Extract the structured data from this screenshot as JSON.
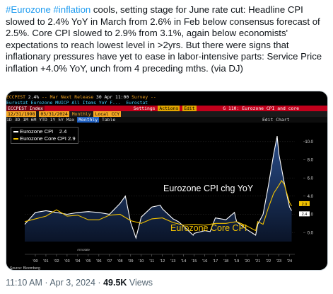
{
  "tweet": {
    "hashtag1": "#Eurozone",
    "hashtag2": "#inflation",
    "body": " cools, setting stage for June rate cut: Headline CPI slowed to 2.4% YoY in March from 2.6% in Feb below consensus forecast of 2.5%. Core CPI slowed to 2.9% from 3.1%, again below economists' expectations to reach lowest level in >2yrs. But there were signs that inflationary pressures have yet to ease in labor-intensive parts: Service Price inflation +4.0% YoY, unch from 4 preceding mths. (via DJ)"
  },
  "terminal": {
    "ticker": "ECCPEST",
    "last": "2.4%",
    "unch": "--",
    "period": "Mar",
    "next_release_label": "Next Release",
    "next_release": "30 Apr 11:00",
    "survey_label": "Survey",
    "survey": "--",
    "description": "Eurostat Eurozone MUICP All Items YoY F...",
    "source": "Eurostat",
    "security": "ECCPEST Index",
    "btn_settings": "Settings",
    "btn_actions": "Actions",
    "btn_edit": "Edit",
    "page_title": "G 110: Eurozone CPI and core",
    "date_from": "12/31/1998",
    "date_to": "03/31/2024",
    "freq": "Monthly",
    "type": "Local CCY",
    "ranges": [
      "1D",
      "3D",
      "1M",
      "6M",
      "YTD",
      "1Y",
      "5Y",
      "Max"
    ],
    "range_selected": "Monthly",
    "table_btn": "Table",
    "edit_chart": "Edit Chart",
    "source_footer": "Source: Bloomberg"
  },
  "colors": {
    "headline": "#ffffff",
    "core": "#f2c200",
    "area_top": "#2a4d8a",
    "area_bottom": "#0a1428",
    "accent": "#1d9bf0",
    "bb_red": "#c2001b",
    "bb_amber": "#f5a623"
  },
  "chart_data": {
    "type": "area",
    "series": [
      {
        "name": "Eurozone CPI",
        "last_value": "2.4",
        "x": [
          1999,
          2000,
          2001,
          2002,
          2003,
          2004,
          2005,
          2006,
          2007,
          2008,
          2008.5,
          2009,
          2009.5,
          2010,
          2011,
          2011.8,
          2012,
          2013,
          2013.5,
          2014,
          2014.9,
          2015,
          2016,
          2016.5,
          2017,
          2018,
          2018.8,
          2019,
          2020,
          2020.8,
          2021,
          2021.5,
          2022,
          2022.5,
          2022.83,
          2023,
          2023.5,
          2024,
          2024.2
        ],
        "y": [
          0.9,
          2.2,
          2.4,
          2.2,
          2.0,
          2.2,
          2.3,
          2.2,
          2.0,
          3.2,
          4.0,
          1.1,
          -0.6,
          1.7,
          2.8,
          3.0,
          2.6,
          1.5,
          1.2,
          0.7,
          -0.3,
          -0.1,
          0.2,
          0.1,
          1.6,
          1.4,
          2.2,
          1.2,
          0.3,
          -0.3,
          0.9,
          2.0,
          5.1,
          8.6,
          10.6,
          8.6,
          5.5,
          2.8,
          2.4
        ]
      },
      {
        "name": "Eurozone Core CPI",
        "last_value": "2.9",
        "x": [
          1999,
          2001,
          2002,
          2003,
          2004,
          2005,
          2006,
          2007,
          2008,
          2009,
          2010,
          2011,
          2012,
          2013,
          2014,
          2015,
          2016,
          2017,
          2018,
          2019,
          2020,
          2020.8,
          2021,
          2021.5,
          2022,
          2022.5,
          2023,
          2023.25,
          2023.5,
          2024,
          2024.2
        ],
        "y": [
          1.2,
          1.8,
          2.5,
          1.8,
          1.9,
          1.4,
          1.4,
          1.9,
          2.0,
          1.3,
          1.0,
          1.5,
          1.6,
          1.1,
          0.8,
          0.9,
          0.8,
          1.0,
          1.0,
          1.2,
          0.7,
          0.2,
          1.2,
          0.9,
          2.7,
          4.3,
          5.2,
          5.7,
          5.3,
          3.3,
          2.9
        ]
      }
    ],
    "annotation_headline": "Eurozone CPI chg YoY",
    "annotation_core": "Eurozone Core CPI",
    "marker_note": "Annotate",
    "xticks": [
      "'00",
      "'01",
      "'02",
      "'03",
      "'04",
      "'05",
      "'06",
      "'07",
      "'08",
      "'09",
      "'10",
      "'11",
      "'12",
      "'13",
      "'14",
      "'15",
      "'16",
      "'17",
      "'18",
      "'19",
      "'20",
      "'21",
      "'22",
      "'23",
      "'24"
    ],
    "yticks": [
      0,
      2,
      4,
      6,
      8,
      10
    ],
    "ylim": [
      -1,
      11
    ],
    "xlim": [
      1999,
      2024.5
    ],
    "legend": "top-left"
  },
  "footer": {
    "time": "11:10 AM",
    "date": "Apr 3, 2024",
    "views": "49.5K",
    "views_label": "Views"
  }
}
